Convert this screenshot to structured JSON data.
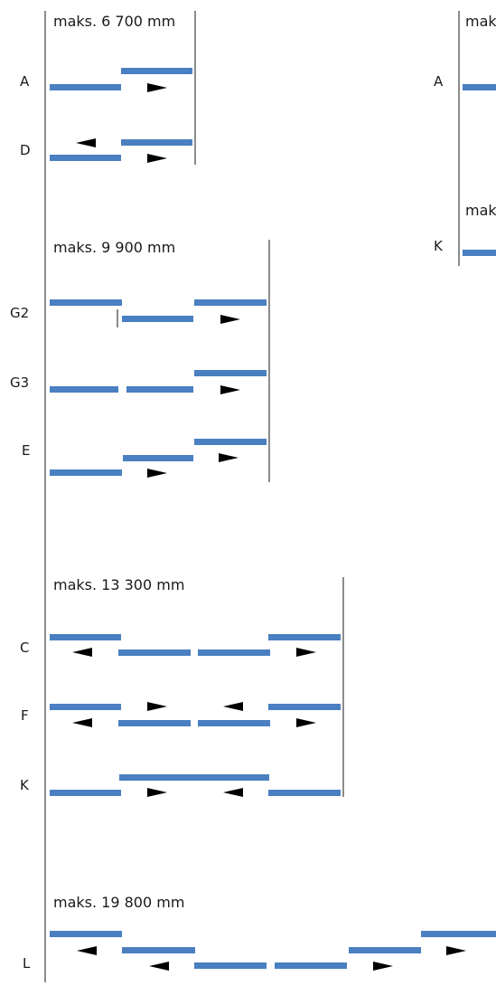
{
  "left_column": {
    "sections": [
      {
        "max_length": "maks. 6 700 mm",
        "rows": [
          "A",
          "D"
        ]
      },
      {
        "max_length": "maks. 9 900 mm",
        "rows": [
          "G2",
          "G3",
          "E"
        ]
      },
      {
        "max_length": "maks. 13 300 mm",
        "rows": [
          "C",
          "F",
          "K"
        ]
      },
      {
        "max_length": "maks. 19 800 mm",
        "rows": [
          "L"
        ]
      }
    ]
  },
  "right_column": {
    "sections": [
      {
        "max_length": "mak",
        "rows": [
          "A"
        ]
      },
      {
        "max_length": "mak",
        "rows": [
          "K"
        ]
      }
    ]
  },
  "colors": {
    "rail": "#4a7fc1",
    "arrow": "#b8bec6",
    "line": "#1a1a1a"
  }
}
